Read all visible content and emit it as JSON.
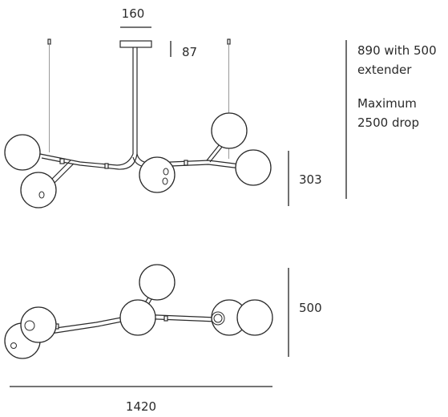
{
  "dimensions": {
    "canopy_width": "160",
    "canopy_height": "87",
    "fixture_height": "303",
    "fixture_depth": "500",
    "overall_width": "1420"
  },
  "notes": {
    "suspension_line1": "890 with 500",
    "suspension_line2": "extender",
    "max_drop_line1": "Maximum",
    "max_drop_line2": "2500 drop"
  }
}
